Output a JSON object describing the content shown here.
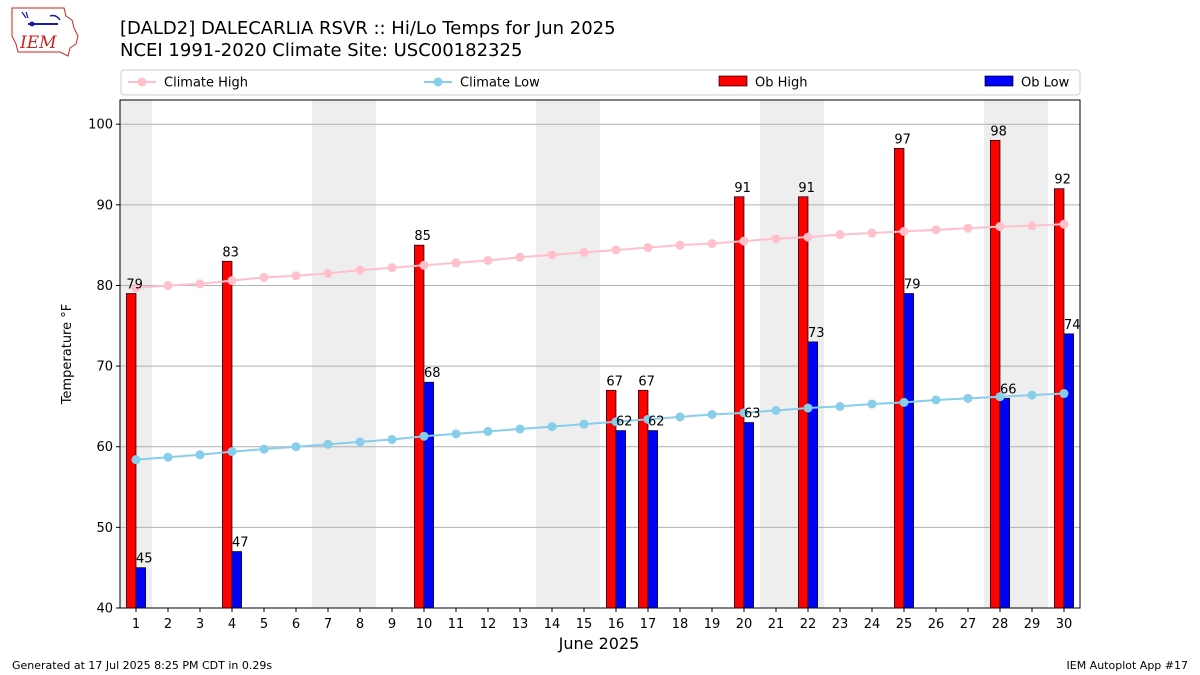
{
  "title_line1": "[DALD2] DALECARLIA RSVR :: Hi/Lo Temps for Jun 2025",
  "title_line2": "NCEI 1991-2020 Climate Site: USC00182325",
  "footer_left": "Generated at 17 Jul 2025 8:25 PM CDT in 0.29s",
  "footer_right": "IEM Autoplot App #17",
  "logo_text": "IEM",
  "colors": {
    "climate_high": "#ffc0cb",
    "climate_low": "#87ceeb",
    "ob_high": "#ff0000",
    "ob_low": "#0000ff",
    "weekend_shade": "#eeeeee",
    "logo": "#cc2222"
  },
  "chart_data": {
    "type": "bar",
    "xlabel": "June 2025",
    "ylabel": "Temperature °F",
    "ylim": [
      40,
      103
    ],
    "yticks": [
      40,
      50,
      60,
      70,
      80,
      90,
      100
    ],
    "grid": true,
    "legend_position": "top",
    "legend": [
      "Climate High",
      "Climate Low",
      "Ob High",
      "Ob Low"
    ],
    "x": [
      1,
      2,
      3,
      4,
      5,
      6,
      7,
      8,
      9,
      10,
      11,
      12,
      13,
      14,
      15,
      16,
      17,
      18,
      19,
      20,
      21,
      22,
      23,
      24,
      25,
      26,
      27,
      28,
      29,
      30
    ],
    "shaded_days": [
      1,
      7,
      8,
      14,
      15,
      21,
      22,
      28,
      29
    ],
    "series": [
      {
        "name": "Climate High",
        "kind": "line",
        "values": [
          79.7,
          80.0,
          80.2,
          80.6,
          81.0,
          81.2,
          81.5,
          81.9,
          82.2,
          82.5,
          82.8,
          83.1,
          83.5,
          83.8,
          84.1,
          84.4,
          84.7,
          85.0,
          85.2,
          85.5,
          85.8,
          86.0,
          86.3,
          86.5,
          86.7,
          86.9,
          87.1,
          87.3,
          87.4,
          87.6
        ]
      },
      {
        "name": "Climate Low",
        "kind": "line",
        "values": [
          58.4,
          58.7,
          59.0,
          59.4,
          59.7,
          60.0,
          60.3,
          60.6,
          60.9,
          61.3,
          61.6,
          61.9,
          62.2,
          62.5,
          62.8,
          63.1,
          63.4,
          63.7,
          64.0,
          64.2,
          64.5,
          64.8,
          65.0,
          65.3,
          65.5,
          65.8,
          66.0,
          66.2,
          66.4,
          66.6
        ]
      },
      {
        "name": "Ob High",
        "kind": "bar",
        "values": [
          79,
          null,
          null,
          83,
          null,
          null,
          null,
          null,
          null,
          85,
          null,
          null,
          null,
          null,
          null,
          67,
          67,
          null,
          null,
          91,
          null,
          91,
          null,
          null,
          97,
          null,
          null,
          98,
          null,
          92
        ]
      },
      {
        "name": "Ob Low",
        "kind": "bar",
        "values": [
          45,
          null,
          null,
          47,
          null,
          null,
          null,
          null,
          null,
          68,
          null,
          null,
          null,
          null,
          null,
          62,
          62,
          null,
          null,
          63,
          null,
          73,
          null,
          null,
          79,
          null,
          null,
          66,
          null,
          74
        ]
      }
    ]
  }
}
